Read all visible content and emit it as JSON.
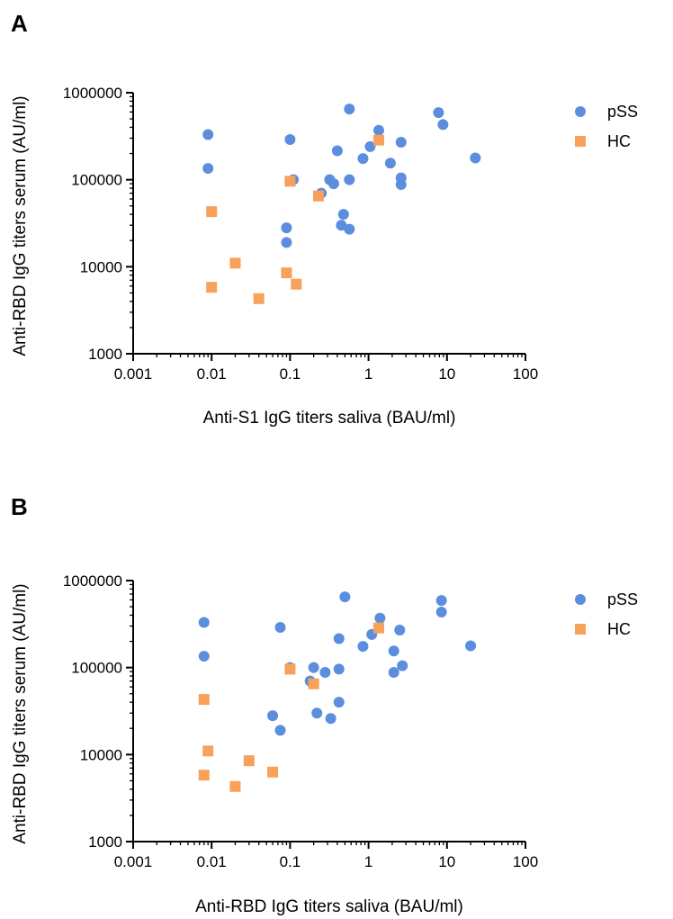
{
  "colors": {
    "pSS": "#5B8EDE",
    "HC": "#F7A15A"
  },
  "chart_data": [
    {
      "panel": "A",
      "type": "scatter",
      "xlabel": "Anti-S1 IgG titers saliva (BAU/ml)",
      "ylabel": "Anti-RBD IgG titers serum (AU/ml)",
      "xscale": "log",
      "yscale": "log",
      "xlim": [
        0.001,
        100
      ],
      "ylim": [
        1000,
        1000000
      ],
      "xticks": [
        "0.001",
        "0.01",
        "0.1",
        "1",
        "10",
        "100"
      ],
      "yticks": [
        "1000",
        "10000",
        "100000",
        "1000000"
      ],
      "legend": "right",
      "series": [
        {
          "name": "pSS",
          "marker": "circle",
          "points": [
            [
              0.009,
              330000
            ],
            [
              0.009,
              135000
            ],
            [
              0.1,
              290000
            ],
            [
              0.11,
              100000
            ],
            [
              0.09,
              28000
            ],
            [
              0.09,
              19000
            ],
            [
              0.25,
              70000
            ],
            [
              0.32,
              100000
            ],
            [
              0.36,
              90000
            ],
            [
              0.4,
              215000
            ],
            [
              0.45,
              30000
            ],
            [
              0.48,
              40000
            ],
            [
              0.57,
              100000
            ],
            [
              0.57,
              27000
            ],
            [
              0.57,
              650000
            ],
            [
              1.05,
              240000
            ],
            [
              0.85,
              175000
            ],
            [
              1.35,
              370000
            ],
            [
              1.9,
              155000
            ],
            [
              2.6,
              270000
            ],
            [
              2.6,
              105000
            ],
            [
              2.6,
              88000
            ],
            [
              7.8,
              590000
            ],
            [
              8.9,
              430000
            ],
            [
              23,
              178000
            ]
          ]
        },
        {
          "name": "HC",
          "marker": "square",
          "points": [
            [
              0.01,
              43000
            ],
            [
              0.01,
              5800
            ],
            [
              0.02,
              11000
            ],
            [
              0.04,
              4300
            ],
            [
              0.09,
              8500
            ],
            [
              0.1,
              96000
            ],
            [
              0.12,
              6300
            ],
            [
              0.23,
              65000
            ],
            [
              1.35,
              285000
            ]
          ]
        }
      ]
    },
    {
      "panel": "B",
      "type": "scatter",
      "xlabel": "Anti-RBD IgG titers saliva (BAU/ml)",
      "ylabel": "Anti-RBD IgG titers serum (AU/ml)",
      "xscale": "log",
      "yscale": "log",
      "xlim": [
        0.001,
        100
      ],
      "ylim": [
        1000,
        1000000
      ],
      "xticks": [
        "0.001",
        "0.01",
        "0.1",
        "1",
        "10",
        "100"
      ],
      "yticks": [
        "1000",
        "10000",
        "100000",
        "1000000"
      ],
      "legend": "right",
      "series": [
        {
          "name": "pSS",
          "marker": "circle",
          "points": [
            [
              0.008,
              330000
            ],
            [
              0.008,
              135000
            ],
            [
              0.075,
              290000
            ],
            [
              0.1,
              100000
            ],
            [
              0.06,
              28000
            ],
            [
              0.075,
              19000
            ],
            [
              0.18,
              70000
            ],
            [
              0.2,
              100000
            ],
            [
              0.22,
              30000
            ],
            [
              0.28,
              88000
            ],
            [
              0.33,
              26000
            ],
            [
              0.42,
              215000
            ],
            [
              0.42,
              96000
            ],
            [
              0.42,
              40000
            ],
            [
              0.5,
              650000
            ],
            [
              0.85,
              175000
            ],
            [
              1.1,
              240000
            ],
            [
              1.4,
              370000
            ],
            [
              2.1,
              155000
            ],
            [
              2.1,
              88000
            ],
            [
              2.5,
              270000
            ],
            [
              2.7,
              105000
            ],
            [
              8.5,
              590000
            ],
            [
              8.5,
              435000
            ],
            [
              20,
              178000
            ]
          ]
        },
        {
          "name": "HC",
          "marker": "square",
          "points": [
            [
              0.008,
              43000
            ],
            [
              0.008,
              5800
            ],
            [
              0.009,
              11000
            ],
            [
              0.02,
              4300
            ],
            [
              0.03,
              8500
            ],
            [
              0.06,
              6300
            ],
            [
              0.1,
              96000
            ],
            [
              0.2,
              65000
            ],
            [
              1.35,
              285000
            ]
          ]
        }
      ]
    }
  ]
}
